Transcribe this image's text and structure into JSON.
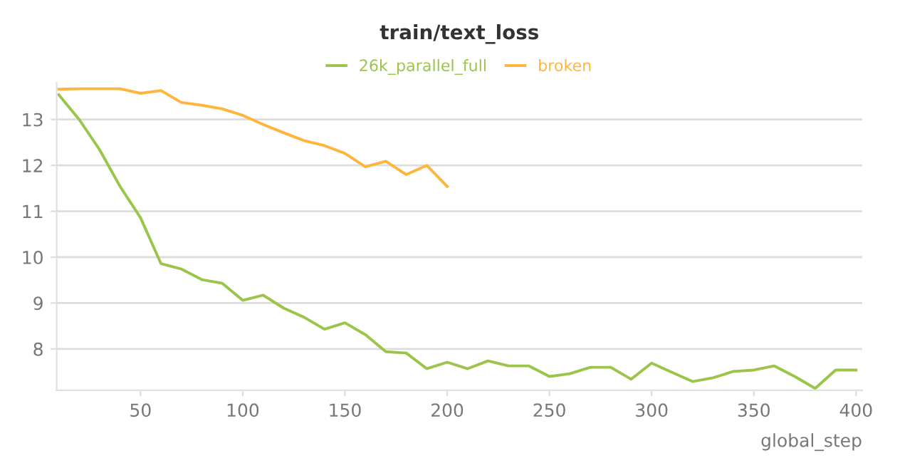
{
  "chart_data": {
    "type": "line",
    "title": "train/text_loss",
    "xlabel": "global_step",
    "xlim": [
      9,
      403
    ],
    "xticks": [
      50,
      100,
      150,
      200,
      250,
      300,
      350,
      400
    ],
    "ylim": [
      7.1,
      13.8
    ],
    "yticks": [
      8,
      9,
      10,
      11,
      12,
      13
    ],
    "grid": "y",
    "legend": "top",
    "marker": "none",
    "line_style": "solid",
    "series": [
      {
        "name": "26k_parallel_full",
        "color": "#9bc44a",
        "x": [
          10,
          20,
          30,
          40,
          50,
          60,
          70,
          80,
          90,
          100,
          110,
          120,
          130,
          140,
          150,
          160,
          170,
          180,
          190,
          200,
          210,
          220,
          230,
          240,
          250,
          260,
          270,
          280,
          290,
          300,
          310,
          320,
          330,
          340,
          350,
          360,
          370,
          380,
          390,
          400
        ],
        "values": [
          13.54,
          13.0,
          12.34,
          11.54,
          10.86,
          9.86,
          9.74,
          9.51,
          9.43,
          9.06,
          9.17,
          8.89,
          8.69,
          8.43,
          8.57,
          8.31,
          7.94,
          7.91,
          7.57,
          7.71,
          7.57,
          7.74,
          7.63,
          7.63,
          7.4,
          7.46,
          7.6,
          7.6,
          7.34,
          7.69,
          7.49,
          7.29,
          7.37,
          7.51,
          7.54,
          7.63,
          7.4,
          7.14,
          7.54,
          7.54
        ]
      },
      {
        "name": "broken",
        "color": "#ffb53c",
        "x": [
          10,
          20,
          30,
          40,
          50,
          60,
          70,
          80,
          90,
          100,
          110,
          120,
          130,
          140,
          150,
          160,
          170,
          180,
          190,
          200
        ],
        "values": [
          13.66,
          13.67,
          13.67,
          13.67,
          13.57,
          13.63,
          13.37,
          13.31,
          13.23,
          13.09,
          12.89,
          12.71,
          12.54,
          12.43,
          12.26,
          11.97,
          12.09,
          11.8,
          12.0,
          11.54
        ]
      }
    ]
  }
}
